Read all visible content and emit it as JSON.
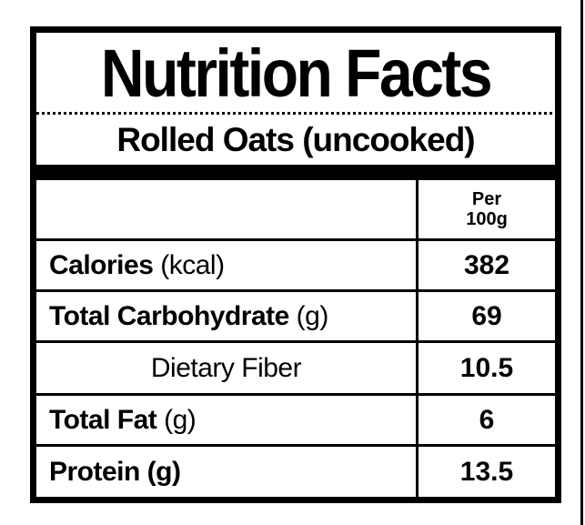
{
  "label": {
    "title": "Nutrition Facts",
    "subtitle": "Rolled Oats (uncooked)",
    "header": {
      "line1": "Per",
      "line2": "100g"
    },
    "rows": [
      {
        "bold": "Calories",
        "regular": " (kcal)",
        "value": "382"
      },
      {
        "bold": "Total Carbohydrate",
        "regular": " (g)",
        "value": "69"
      },
      {
        "bold": "",
        "regular": "Dietary Fiber",
        "value": "10.5"
      },
      {
        "bold": "Total Fat",
        "regular": " (g)",
        "value": "6"
      },
      {
        "bold": "Protein (g)",
        "regular": "",
        "value": "13.5"
      }
    ],
    "colors": {
      "ink": "#000000",
      "paper": "#ffffff"
    }
  }
}
